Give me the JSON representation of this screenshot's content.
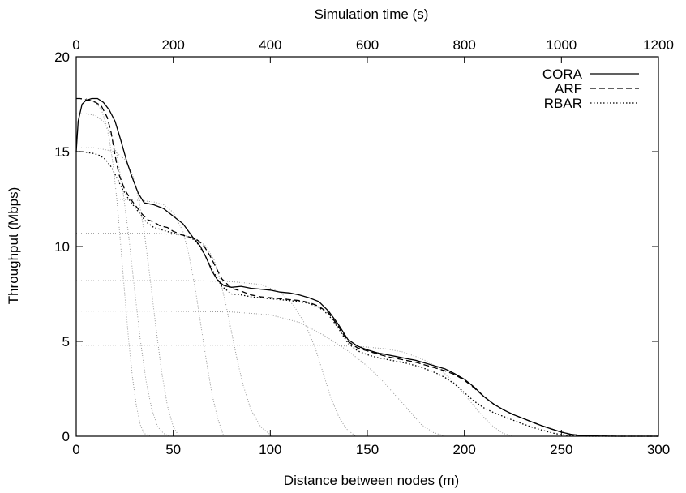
{
  "chart_data": {
    "type": "line",
    "xlabel": "Distance between nodes (m)",
    "x2label": "Simulation time (s)",
    "ylabel": "Throughput (Mbps)",
    "xlim": [
      0,
      300
    ],
    "x2lim": [
      0,
      1200
    ],
    "ylim": [
      0,
      20
    ],
    "xticks": [
      0,
      50,
      100,
      150,
      200,
      250,
      300
    ],
    "x2ticks": [
      0,
      200,
      400,
      600,
      800,
      1000,
      1200
    ],
    "yticks": [
      0,
      5,
      10,
      15,
      20
    ],
    "grid": false,
    "legend_position": "top-right",
    "colors": {
      "series": "#000000",
      "rates": "#999999"
    },
    "series": [
      {
        "name": "CORA",
        "style": "solid",
        "x": [
          0,
          1,
          3,
          5,
          8,
          11,
          14,
          17,
          20,
          23,
          26,
          29,
          32,
          35,
          40,
          45,
          50,
          55,
          60,
          64,
          67,
          70,
          73,
          76,
          80,
          85,
          90,
          95,
          100,
          105,
          110,
          115,
          120,
          125,
          130,
          135,
          140,
          145,
          150,
          155,
          160,
          165,
          170,
          175,
          180,
          185,
          190,
          195,
          200,
          205,
          210,
          215,
          220,
          225,
          230,
          235,
          240,
          245,
          250,
          255,
          260,
          265,
          270,
          280,
          290,
          300
        ],
        "y": [
          15,
          16.6,
          17.5,
          17.7,
          17.8,
          17.8,
          17.6,
          17.2,
          16.6,
          15.6,
          14.5,
          13.6,
          12.8,
          12.3,
          12.2,
          12.0,
          11.6,
          11.2,
          10.5,
          10.0,
          9.4,
          8.7,
          8.2,
          7.95,
          7.85,
          7.9,
          7.8,
          7.75,
          7.7,
          7.6,
          7.55,
          7.45,
          7.3,
          7.1,
          6.6,
          5.9,
          5.1,
          4.75,
          4.55,
          4.4,
          4.3,
          4.2,
          4.1,
          4.0,
          3.85,
          3.7,
          3.55,
          3.3,
          3.0,
          2.6,
          2.1,
          1.7,
          1.4,
          1.15,
          0.95,
          0.75,
          0.55,
          0.38,
          0.22,
          0.1,
          0.04,
          0.02,
          0.01,
          0,
          0,
          0
        ]
      },
      {
        "name": "ARF",
        "style": "dashed",
        "x": [
          0,
          2,
          4,
          7,
          10,
          13,
          16,
          18,
          20,
          22,
          25,
          28,
          31,
          34,
          37,
          40,
          43,
          47,
          50,
          55,
          60,
          63,
          66,
          69,
          72,
          75,
          80,
          85,
          90,
          95,
          100,
          105,
          110,
          115,
          120,
          125,
          130,
          135,
          140,
          145,
          150,
          155,
          160,
          165,
          170,
          175,
          180,
          185,
          190,
          195,
          200,
          205,
          210,
          215,
          220,
          225,
          230,
          235,
          240,
          245,
          250,
          255,
          260,
          265,
          270,
          280,
          290,
          300
        ],
        "y": [
          17.8,
          17.8,
          17.75,
          17.7,
          17.6,
          17.4,
          16.8,
          16.0,
          14.8,
          13.8,
          13.0,
          12.5,
          12.1,
          11.7,
          11.4,
          11.3,
          11.1,
          11.0,
          10.8,
          10.6,
          10.45,
          10.3,
          10.0,
          9.5,
          8.9,
          8.3,
          7.8,
          7.65,
          7.45,
          7.35,
          7.3,
          7.25,
          7.2,
          7.15,
          7.05,
          6.85,
          6.5,
          5.8,
          5.0,
          4.65,
          4.5,
          4.35,
          4.2,
          4.1,
          4.0,
          3.9,
          3.75,
          3.6,
          3.45,
          3.25,
          2.95,
          2.55,
          2.1,
          1.7,
          1.4,
          1.15,
          0.95,
          0.75,
          0.55,
          0.38,
          0.22,
          0.1,
          0.04,
          0.02,
          0.01,
          0,
          0,
          0
        ]
      },
      {
        "name": "RBAR",
        "style": "dotted",
        "x": [
          0,
          3,
          6,
          9,
          12,
          15,
          18,
          21,
          24,
          27,
          30,
          33,
          36,
          40,
          45,
          50,
          55,
          60,
          63,
          66,
          70,
          75,
          80,
          85,
          90,
          95,
          100,
          105,
          110,
          115,
          120,
          125,
          130,
          135,
          140,
          145,
          150,
          155,
          160,
          165,
          170,
          175,
          180,
          185,
          190,
          195,
          200,
          205,
          210,
          215,
          220,
          225,
          230,
          235,
          240,
          245,
          250,
          255,
          260,
          265,
          270,
          280,
          290,
          300
        ],
        "y": [
          15,
          15,
          14.95,
          14.9,
          14.8,
          14.6,
          14.2,
          13.6,
          13.0,
          12.5,
          12.1,
          11.7,
          11.3,
          11.0,
          10.85,
          10.7,
          10.6,
          10.4,
          10.1,
          9.6,
          8.8,
          7.9,
          7.5,
          7.45,
          7.35,
          7.3,
          7.25,
          7.2,
          7.15,
          7.1,
          7.0,
          6.8,
          6.4,
          5.7,
          4.9,
          4.5,
          4.3,
          4.15,
          4.05,
          3.95,
          3.85,
          3.72,
          3.55,
          3.35,
          3.1,
          2.75,
          2.3,
          1.85,
          1.5,
          1.25,
          1.05,
          0.85,
          0.65,
          0.48,
          0.32,
          0.18,
          0.08,
          0.03,
          0.01,
          0,
          0,
          0,
          0,
          0
        ]
      }
    ],
    "rate_curves": [
      {
        "plateau": 17.8,
        "x": [
          0,
          5,
          10,
          13,
          15,
          17,
          19,
          21,
          23,
          25,
          27,
          29,
          31,
          33,
          35,
          38
        ],
        "y": [
          17.8,
          17.8,
          17.6,
          17.2,
          16.6,
          15.7,
          14.3,
          12.4,
          10.0,
          7.5,
          5.1,
          3.1,
          1.6,
          0.6,
          0.15,
          0
        ]
      },
      {
        "plateau": 17.0,
        "x": [
          0,
          5,
          10,
          14,
          18,
          21,
          24,
          27,
          30,
          33,
          36,
          39,
          42,
          45,
          48
        ],
        "y": [
          17.0,
          17.0,
          16.9,
          16.6,
          15.9,
          14.8,
          13.0,
          10.6,
          7.8,
          5.1,
          2.9,
          1.4,
          0.5,
          0.15,
          0
        ]
      },
      {
        "plateau": 15.2,
        "x": [
          0,
          10,
          20,
          25,
          29,
          32,
          35,
          38,
          41,
          44,
          47,
          50,
          53
        ],
        "y": [
          15.2,
          15.2,
          15.0,
          14.6,
          13.8,
          12.6,
          10.8,
          8.4,
          5.8,
          3.4,
          1.6,
          0.5,
          0
        ]
      },
      {
        "plateau": 12.5,
        "x": [
          0,
          10,
          20,
          30,
          40,
          45,
          50,
          55,
          58,
          61,
          64,
          67,
          70,
          73,
          76
        ],
        "y": [
          12.5,
          12.5,
          12.5,
          12.45,
          12.35,
          12.2,
          11.8,
          10.8,
          9.6,
          8.0,
          6.0,
          4.0,
          2.2,
          0.9,
          0
        ]
      },
      {
        "plateau": 10.7,
        "x": [
          0,
          20,
          40,
          55,
          62,
          67,
          71,
          74,
          77,
          80,
          83,
          86,
          90,
          95,
          101
        ],
        "y": [
          10.7,
          10.7,
          10.7,
          10.6,
          10.4,
          10.0,
          9.3,
          8.3,
          7.0,
          5.5,
          4.0,
          2.7,
          1.4,
          0.5,
          0
        ]
      },
      {
        "plateau": 8.2,
        "x": [
          0,
          30,
          60,
          80,
          95,
          105,
          112,
          118,
          123,
          127,
          131,
          135,
          139,
          144
        ],
        "y": [
          8.2,
          8.2,
          8.2,
          8.15,
          8.0,
          7.6,
          6.9,
          5.9,
          4.7,
          3.4,
          2.1,
          1.1,
          0.4,
          0
        ]
      },
      {
        "plateau": 6.6,
        "x": [
          0,
          40,
          80,
          100,
          115,
          128,
          140,
          150,
          158,
          165,
          172,
          178,
          184,
          190
        ],
        "y": [
          6.6,
          6.6,
          6.55,
          6.4,
          6.0,
          5.3,
          4.5,
          3.7,
          2.9,
          2.1,
          1.3,
          0.6,
          0.2,
          0
        ]
      },
      {
        "plateau": 4.8,
        "x": [
          0,
          50,
          100,
          130,
          150,
          160,
          168,
          175,
          182,
          189,
          195,
          200,
          205,
          210,
          215,
          220,
          225
        ],
        "y": [
          4.8,
          4.8,
          4.8,
          4.8,
          4.7,
          4.6,
          4.45,
          4.2,
          3.9,
          3.4,
          2.8,
          2.2,
          1.6,
          1.0,
          0.5,
          0.15,
          0
        ]
      }
    ]
  }
}
